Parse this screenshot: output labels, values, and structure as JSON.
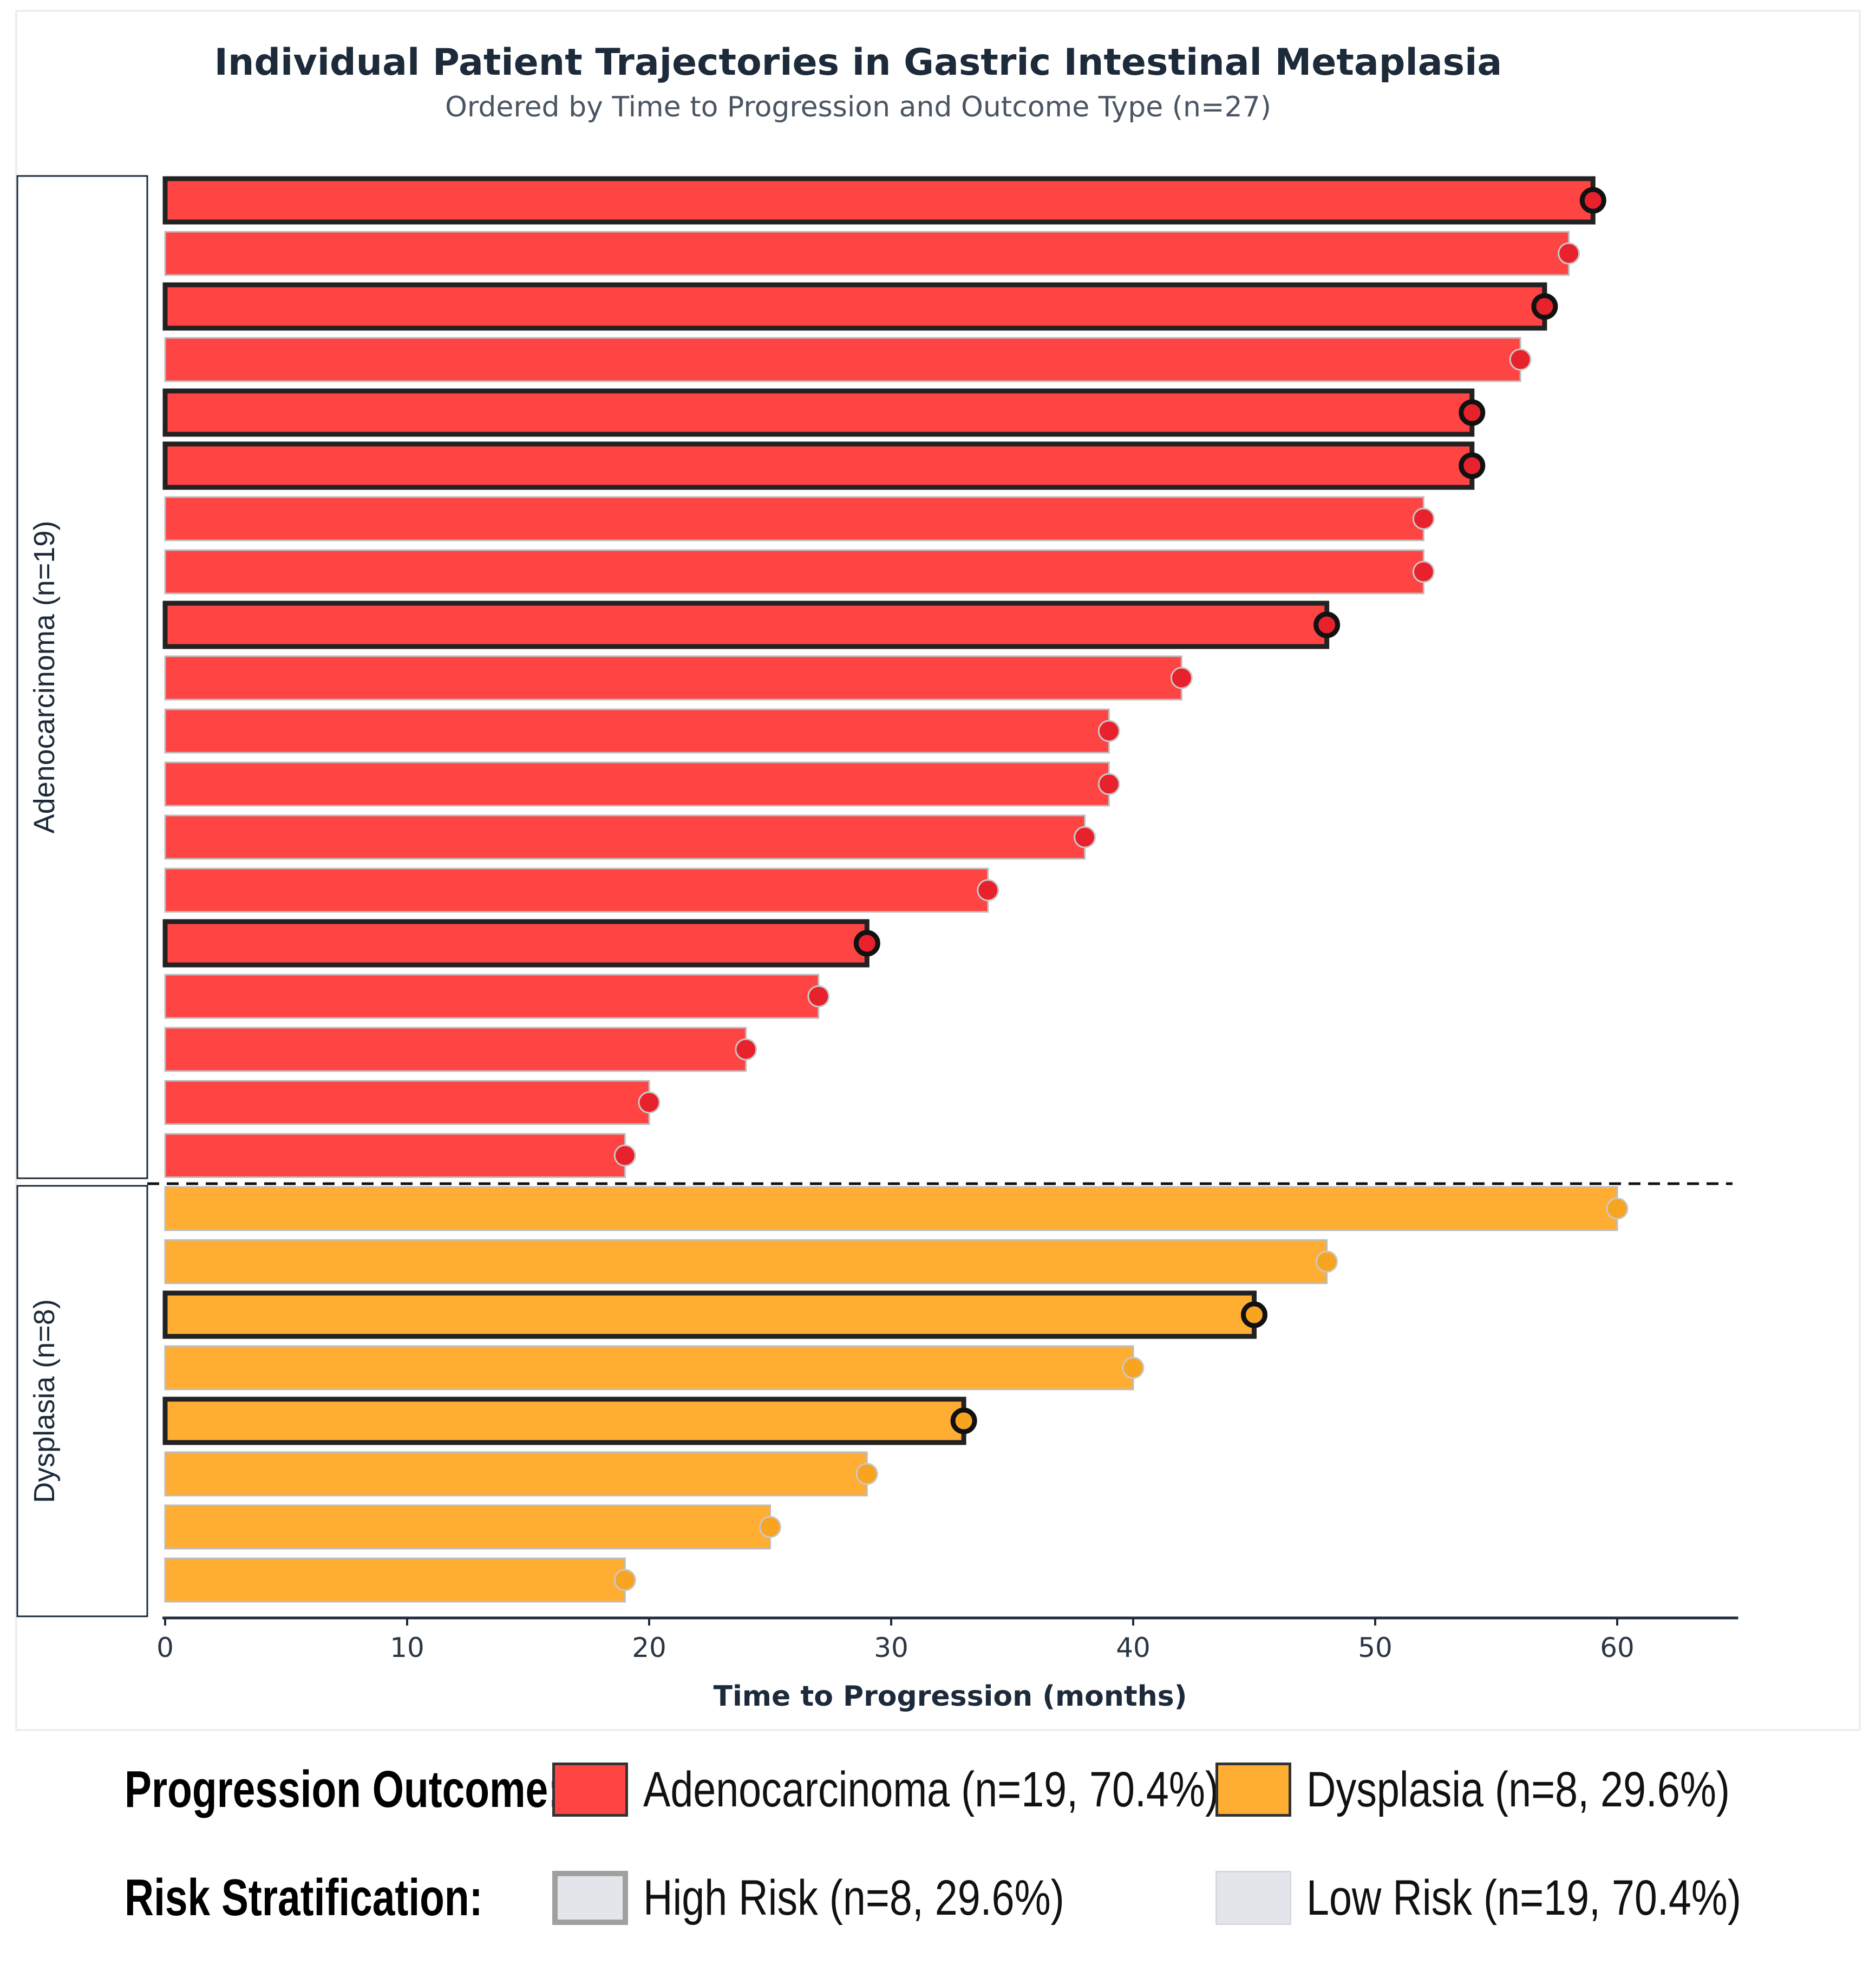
{
  "colors": {
    "adeno": "#ff4444",
    "adeno_marker": "#e8222d",
    "dysplasia": "#ffad33",
    "dysplasia_marker": "#f7a420",
    "outline": "#222222",
    "axis": "#1e2b3b"
  },
  "chart_data": {
    "type": "bar",
    "orientation": "horizontal",
    "title": "Individual Patient Trajectories in Gastric Intestinal Metaplasia",
    "subtitle": "Ordered by Time to Progression and Outcome Type (n=27)",
    "xlabel": "Time to Progression (months)",
    "xlim": [
      0,
      65
    ],
    "xticks": [
      "0",
      "10",
      "20",
      "30",
      "40",
      "50",
      "60"
    ],
    "groups": [
      {
        "label": "Adenocarcinoma (n=19)",
        "outcome": "adeno",
        "patients": [
          {
            "months": 59,
            "high_risk": true
          },
          {
            "months": 58,
            "high_risk": false
          },
          {
            "months": 57,
            "high_risk": true
          },
          {
            "months": 56,
            "high_risk": false
          },
          {
            "months": 54,
            "high_risk": true
          },
          {
            "months": 54,
            "high_risk": true
          },
          {
            "months": 52,
            "high_risk": false
          },
          {
            "months": 52,
            "high_risk": false
          },
          {
            "months": 48,
            "high_risk": true
          },
          {
            "months": 42,
            "high_risk": false
          },
          {
            "months": 39,
            "high_risk": false
          },
          {
            "months": 39,
            "high_risk": false
          },
          {
            "months": 38,
            "high_risk": false
          },
          {
            "months": 34,
            "high_risk": false
          },
          {
            "months": 29,
            "high_risk": true
          },
          {
            "months": 27,
            "high_risk": false
          },
          {
            "months": 24,
            "high_risk": false
          },
          {
            "months": 20,
            "high_risk": false
          },
          {
            "months": 19,
            "high_risk": false
          }
        ]
      },
      {
        "label": "Dysplasia (n=8)",
        "outcome": "dysplasia",
        "patients": [
          {
            "months": 60,
            "high_risk": false
          },
          {
            "months": 48,
            "high_risk": false
          },
          {
            "months": 45,
            "high_risk": true
          },
          {
            "months": 40,
            "high_risk": false
          },
          {
            "months": 33,
            "high_risk": true
          },
          {
            "months": 29,
            "high_risk": false
          },
          {
            "months": 25,
            "high_risk": false
          },
          {
            "months": 19,
            "high_risk": false
          }
        ]
      }
    ]
  },
  "legend": {
    "outcome_heading": "Progression Outcome:",
    "adeno_label": "Adenocarcinoma (n=19, 70.4%)",
    "dysplasia_label": "Dysplasia (n=8, 29.6%)",
    "risk_heading": "Risk Stratification:",
    "high_label": "High Risk (n=8, 29.6%)",
    "low_label": "Low Risk (n=19, 70.4%)"
  }
}
